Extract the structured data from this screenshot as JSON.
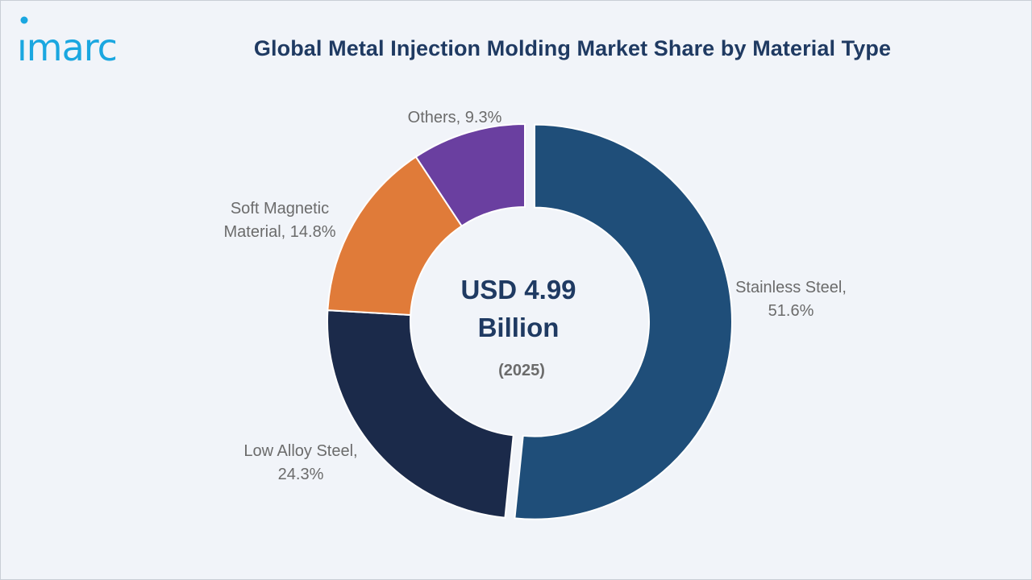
{
  "brand": {
    "logo_text": "imarc",
    "color": "#1aa7e0"
  },
  "chart_data": {
    "type": "pie",
    "title": "Global Metal Injection Molding Market Share by Material Type",
    "center_value": [
      "USD 4.99",
      "Billion"
    ],
    "center_year": "(2025)",
    "slices": [
      {
        "category": "Stainless Steel",
        "value": 51.6,
        "label": [
          "Stainless Steel,",
          "51.6%"
        ],
        "color": "#1f4e79"
      },
      {
        "category": "Low Alloy Steel",
        "value": 24.3,
        "label": [
          "Low Alloy Steel,",
          "24.3%"
        ],
        "color": "#1b2a4a"
      },
      {
        "category": "Soft Magnetic Material",
        "value": 14.8,
        "label": [
          "Soft Magnetic",
          "Material, 14.8%"
        ],
        "color": "#e07b39"
      },
      {
        "category": "Others",
        "value": 9.3,
        "label": [
          "Others, 9.3%"
        ],
        "color": "#6a3fa0"
      }
    ]
  }
}
